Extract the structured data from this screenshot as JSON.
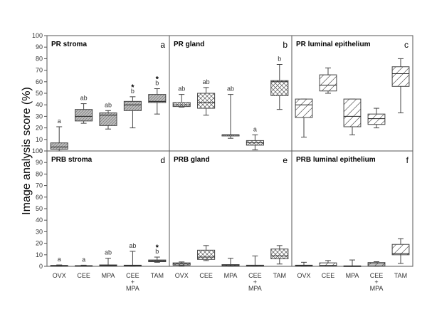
{
  "chart_data": {
    "type": "box",
    "ylabel": "Image analysis score (%)",
    "categories": [
      "OVX",
      "CEE",
      "MPA",
      "CEE\n+\nMPA",
      "TAM"
    ],
    "panels": [
      {
        "title": "PR stroma",
        "letter": "a",
        "row": 0,
        "col": 0,
        "ylim": [
          0,
          100
        ],
        "yticks": [
          0,
          10,
          20,
          30,
          40,
          50,
          60,
          70,
          80,
          90,
          100
        ],
        "boxes": [
          {
            "category": "OVX",
            "min": 0,
            "q1": 1.5,
            "median": 3.5,
            "q3": 7,
            "max": 21,
            "pattern": "diag",
            "annotation": [
              "a"
            ]
          },
          {
            "category": "CEE",
            "min": 24,
            "q1": 26,
            "median": 30,
            "q3": 36,
            "max": 41,
            "pattern": "diag",
            "annotation": [
              "ab"
            ]
          },
          {
            "category": "MPA",
            "min": 19,
            "q1": 22,
            "median": 31,
            "q3": 33,
            "max": 35,
            "pattern": "diag",
            "annotation": [
              "ab"
            ]
          },
          {
            "category": "CEE + MPA",
            "min": 20,
            "q1": 35,
            "median": 40,
            "q3": 43,
            "max": 47,
            "pattern": "diag",
            "annotation": [
              "*",
              "b"
            ]
          },
          {
            "category": "TAM",
            "min": 32,
            "q1": 42,
            "median": 43,
            "q3": 49,
            "max": 54,
            "pattern": "diag",
            "annotation": [
              "*",
              "b"
            ]
          }
        ]
      },
      {
        "title": "PR gland",
        "letter": "b",
        "row": 0,
        "col": 1,
        "ylim": [
          0,
          100
        ],
        "boxes": [
          {
            "category": "OVX",
            "min": 38,
            "q1": 38.5,
            "median": 40,
            "q3": 42,
            "max": 49,
            "pattern": "cross",
            "annotation": [
              "ab"
            ]
          },
          {
            "category": "CEE",
            "min": 31,
            "q1": 37,
            "median": 42,
            "q3": 50,
            "max": 55,
            "pattern": "cross",
            "annotation": [
              "ab"
            ]
          },
          {
            "category": "MPA",
            "min": 11,
            "q1": 13,
            "median": 14,
            "q3": 14,
            "max": 49,
            "pattern": "cross",
            "annotation": [
              "ab"
            ]
          },
          {
            "category": "CEE + MPA",
            "min": 1,
            "q1": 5,
            "median": 7,
            "q3": 9,
            "max": 14,
            "pattern": "cross",
            "annotation": [
              "a"
            ]
          },
          {
            "category": "TAM",
            "min": 36,
            "q1": 48,
            "median": 60,
            "q3": 61,
            "max": 75,
            "pattern": "cross",
            "annotation": [
              "b"
            ]
          }
        ]
      },
      {
        "title": "PR luminal epithelium",
        "letter": "c",
        "row": 0,
        "col": 2,
        "ylim": [
          0,
          100
        ],
        "boxes": [
          {
            "category": "OVX",
            "min": 12,
            "q1": 29,
            "median": 40,
            "q3": 45,
            "max": 45,
            "pattern": "diag-wide",
            "annotation": []
          },
          {
            "category": "CEE",
            "min": 50,
            "q1": 52,
            "median": 57,
            "q3": 66,
            "max": 72,
            "pattern": "diag-wide",
            "annotation": []
          },
          {
            "category": "MPA",
            "min": 14,
            "q1": 21,
            "median": 30,
            "q3": 45,
            "max": 45,
            "pattern": "diag-wide",
            "annotation": []
          },
          {
            "category": "CEE + MPA",
            "min": 20,
            "q1": 23,
            "median": 28,
            "q3": 32,
            "max": 37,
            "pattern": "diag-wide",
            "annotation": []
          },
          {
            "category": "TAM",
            "min": 33,
            "q1": 56,
            "median": 67,
            "q3": 73,
            "max": 80,
            "pattern": "diag-wide",
            "annotation": []
          }
        ]
      },
      {
        "title": "PRB stroma",
        "letter": "d",
        "row": 1,
        "col": 0,
        "ylim": [
          0,
          100
        ],
        "yticks": [
          0,
          10,
          20,
          30,
          40,
          50,
          60,
          70,
          80,
          90,
          100
        ],
        "boxes": [
          {
            "category": "OVX",
            "min": 0,
            "q1": 0.2,
            "median": 0.4,
            "q3": 0.8,
            "max": 1.2,
            "pattern": "diag",
            "annotation": [
              "a"
            ]
          },
          {
            "category": "CEE",
            "min": 0,
            "q1": 0.2,
            "median": 0.3,
            "q3": 0.6,
            "max": 1,
            "pattern": "diag",
            "annotation": [
              "a"
            ]
          },
          {
            "category": "MPA",
            "min": 0.5,
            "q1": 1,
            "median": 1,
            "q3": 1.2,
            "max": 7,
            "pattern": "diag",
            "annotation": [
              "ab"
            ]
          },
          {
            "category": "CEE + MPA",
            "min": 0,
            "q1": 0.5,
            "median": 0.8,
            "q3": 1,
            "max": 13,
            "pattern": "diag",
            "annotation": [
              "ab"
            ]
          },
          {
            "category": "TAM",
            "min": 3.5,
            "q1": 4,
            "median": 4.8,
            "q3": 5.5,
            "max": 8,
            "pattern": "diag",
            "annotation": [
              "*",
              "b"
            ]
          }
        ]
      },
      {
        "title": "PRB gland",
        "letter": "e",
        "row": 1,
        "col": 1,
        "ylim": [
          0,
          100
        ],
        "boxes": [
          {
            "category": "OVX",
            "min": 0.5,
            "q1": 1,
            "median": 2,
            "q3": 3,
            "max": 3.8,
            "pattern": "cross",
            "annotation": []
          },
          {
            "category": "CEE",
            "min": 5,
            "q1": 6,
            "median": 8,
            "q3": 14,
            "max": 18,
            "pattern": "cross",
            "annotation": []
          },
          {
            "category": "MPA",
            "min": 0,
            "q1": 0.3,
            "median": 0.8,
            "q3": 1.5,
            "max": 7,
            "pattern": "cross",
            "annotation": []
          },
          {
            "category": "CEE + MPA",
            "min": 0,
            "q1": 0.2,
            "median": 0.5,
            "q3": 1,
            "max": 9,
            "pattern": "cross",
            "annotation": []
          },
          {
            "category": "TAM",
            "min": 2,
            "q1": 6.5,
            "median": 9,
            "q3": 15,
            "max": 18,
            "pattern": "cross",
            "annotation": []
          }
        ]
      },
      {
        "title": "PRB luminal epithelium",
        "letter": "f",
        "row": 1,
        "col": 2,
        "ylim": [
          0,
          100
        ],
        "boxes": [
          {
            "category": "OVX",
            "min": 0,
            "q1": 0.3,
            "median": 0.6,
            "q3": 1,
            "max": 3.5,
            "pattern": "diag-wide",
            "annotation": []
          },
          {
            "category": "CEE",
            "min": 0,
            "q1": 0.2,
            "median": 0.8,
            "q3": 3,
            "max": 5,
            "pattern": "diag-wide",
            "annotation": []
          },
          {
            "category": "MPA",
            "min": 0,
            "q1": 0.1,
            "median": 0.2,
            "q3": 0.4,
            "max": 5.5,
            "pattern": "diag-wide",
            "annotation": []
          },
          {
            "category": "CEE + MPA",
            "min": 0,
            "q1": 0.5,
            "median": 2,
            "q3": 3.3,
            "max": 4,
            "pattern": "diag-wide",
            "annotation": []
          },
          {
            "category": "TAM",
            "min": 2.5,
            "q1": 10,
            "median": 11,
            "q3": 19,
            "max": 24,
            "pattern": "diag-wide",
            "annotation": []
          }
        ]
      }
    ],
    "colors": {
      "box_fill": "#bdbdbd",
      "outline": "#444444",
      "frame": "#555555"
    }
  }
}
